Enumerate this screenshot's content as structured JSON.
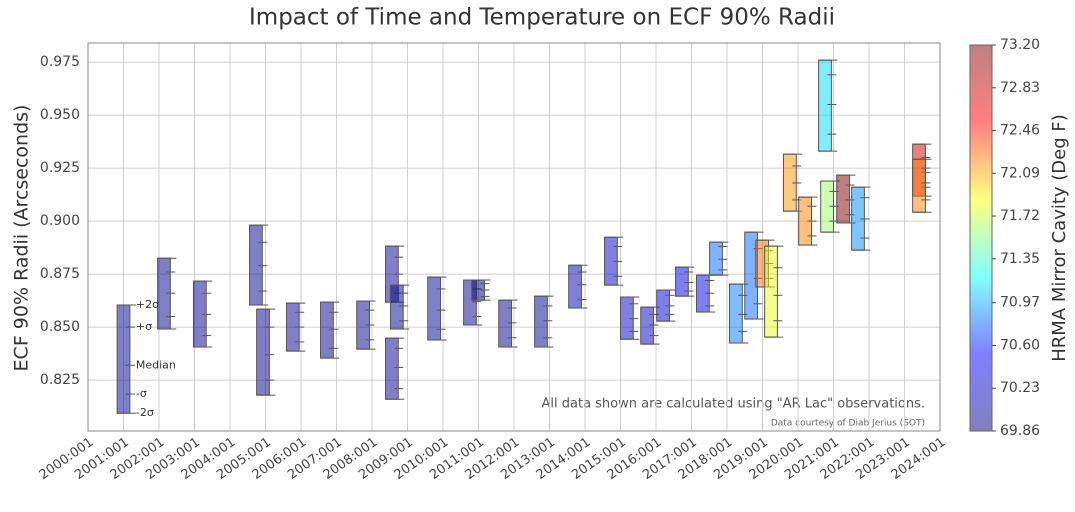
{
  "chart_data": {
    "type": "box",
    "title": "Impact of Time and Temperature on ECF 90% Radii",
    "y_label": "ECF 90% Radii (Arcseconds)",
    "colorbar_label": "HRMA Mirror Cavity (Deg F)",
    "annotations": [
      "All data shown are calculated using \"AR Lac\" observations.",
      "Data courtesy of Diab Jerius (SOT)"
    ],
    "sigma_labels": [
      "-2σ",
      "-σ",
      "Median",
      "+σ",
      "+2σ"
    ],
    "xlim": [
      2000,
      2024
    ],
    "xticks": [
      {
        "value": 2000,
        "label": "2000:001"
      },
      {
        "value": 2001,
        "label": "2001:001"
      },
      {
        "value": 2002,
        "label": "2002:001"
      },
      {
        "value": 2003,
        "label": "2003:001"
      },
      {
        "value": 2004,
        "label": "2004:001"
      },
      {
        "value": 2005,
        "label": "2005:001"
      },
      {
        "value": 2006,
        "label": "2006:001"
      },
      {
        "value": 2007,
        "label": "2007:001"
      },
      {
        "value": 2008,
        "label": "2008:001"
      },
      {
        "value": 2009,
        "label": "2009:001"
      },
      {
        "value": 2010,
        "label": "2010:001"
      },
      {
        "value": 2011,
        "label": "2011:001"
      },
      {
        "value": 2012,
        "label": "2012:001"
      },
      {
        "value": 2013,
        "label": "2013:001"
      },
      {
        "value": 2014,
        "label": "2014:001"
      },
      {
        "value": 2015,
        "label": "2015:001"
      },
      {
        "value": 2016,
        "label": "2016:001"
      },
      {
        "value": 2017,
        "label": "2017:001"
      },
      {
        "value": 2018,
        "label": "2018:001"
      },
      {
        "value": 2019,
        "label": "2019:001"
      },
      {
        "value": 2020,
        "label": "2020:001"
      },
      {
        "value": 2021,
        "label": "2021:001"
      },
      {
        "value": 2022,
        "label": "2022:001"
      },
      {
        "value": 2023,
        "label": "2023:001"
      },
      {
        "value": 2024,
        "label": "2024:001"
      }
    ],
    "ylim": [
      0.801,
      0.984
    ],
    "yticks": [
      0.825,
      {
        "value": 0.85,
        "label": "0.850"
      },
      0.875,
      {
        "value": 0.9,
        "label": "0.900"
      },
      0.925,
      {
        "value": 0.95,
        "label": "0.950"
      },
      0.975
    ],
    "grid": true,
    "clim": [
      69.86,
      73.2
    ],
    "cticks": [
      69.86,
      70.23,
      {
        "value": 70.6,
        "label": "70.60"
      },
      70.97,
      71.35,
      71.72,
      72.09,
      72.46,
      72.83,
      {
        "value": 73.2,
        "label": "73.20"
      }
    ],
    "colormap": [
      "#00007f",
      "#0000ff",
      "#00ffff",
      "#ffff00",
      "#ff0000",
      "#7f0000"
    ],
    "boxes": [
      {
        "x": 2001.0,
        "values": [
          0.8094,
          0.8184,
          0.832,
          0.85,
          0.8604
        ],
        "temp": 69.95
      },
      {
        "x": 2002.14,
        "values": [
          0.8491,
          0.855,
          0.866,
          0.876,
          0.8825
        ],
        "temp": 69.95
      },
      {
        "x": 2003.15,
        "values": [
          0.8406,
          0.846,
          0.856,
          0.866,
          0.8717
        ],
        "temp": 69.95
      },
      {
        "x": 2004.73,
        "values": [
          0.8604,
          0.867,
          0.879,
          0.89,
          0.8981
        ],
        "temp": 69.95
      },
      {
        "x": 2004.93,
        "values": [
          0.8179,
          0.825,
          0.837,
          0.85,
          0.8585
        ],
        "temp": 69.95
      },
      {
        "x": 2005.77,
        "values": [
          0.8387,
          0.843,
          0.85,
          0.857,
          0.8613
        ],
        "temp": 69.95
      },
      {
        "x": 2006.73,
        "values": [
          0.8354,
          0.84,
          0.849,
          0.857,
          0.8618
        ],
        "temp": 69.95
      },
      {
        "x": 2007.75,
        "values": [
          0.8396,
          0.844,
          0.851,
          0.858,
          0.8623
        ],
        "temp": 69.95
      },
      {
        "x": 2008.56,
        "values": [
          0.8618,
          0.866,
          0.875,
          0.883,
          0.8882
        ],
        "temp": 69.95
      },
      {
        "x": 2008.56,
        "values": [
          0.816,
          0.821,
          0.831,
          0.84,
          0.8448
        ],
        "temp": 69.95
      },
      {
        "x": 2008.7,
        "values": [
          0.8491,
          0.853,
          0.86,
          0.866,
          0.8698
        ],
        "temp": 69.95
      },
      {
        "x": 2009.75,
        "values": [
          0.8439,
          0.849,
          0.858,
          0.868,
          0.8736
        ],
        "temp": 69.95
      },
      {
        "x": 2010.76,
        "values": [
          0.851,
          0.855,
          0.862,
          0.868,
          0.8722
        ],
        "temp": 69.95
      },
      {
        "x": 2010.99,
        "values": [
          0.8627,
          0.8645,
          0.8675,
          0.8705,
          0.8722
        ],
        "temp": 69.86
      },
      {
        "x": 2011.75,
        "values": [
          0.8406,
          0.845,
          0.852,
          0.859,
          0.8627
        ],
        "temp": 69.95
      },
      {
        "x": 2012.76,
        "values": [
          0.8406,
          0.845,
          0.853,
          0.86,
          0.8646
        ],
        "temp": 69.95
      },
      {
        "x": 2013.72,
        "values": [
          0.859,
          0.863,
          0.87,
          0.876,
          0.8792
        ],
        "temp": 70.15
      },
      {
        "x": 2014.73,
        "values": [
          0.8698,
          0.874,
          0.881,
          0.888,
          0.8924
        ],
        "temp": 70.25
      },
      {
        "x": 2015.18,
        "values": [
          0.8443,
          0.848,
          0.854,
          0.861,
          0.8642
        ],
        "temp": 70.28
      },
      {
        "x": 2015.75,
        "values": [
          0.842,
          0.846,
          0.851,
          0.856,
          0.8594
        ],
        "temp": 70.2
      },
      {
        "x": 2016.2,
        "values": [
          0.8528,
          0.856,
          0.86,
          0.865,
          0.8675
        ],
        "temp": 70.32
      },
      {
        "x": 2016.73,
        "values": [
          0.8646,
          0.867,
          0.871,
          0.876,
          0.8783
        ],
        "temp": 70.4
      },
      {
        "x": 2017.32,
        "values": [
          0.8571,
          0.86,
          0.866,
          0.872,
          0.8745
        ],
        "temp": 70.45
      },
      {
        "x": 2017.69,
        "values": [
          0.8745,
          0.877,
          0.882,
          0.888,
          0.8901
        ],
        "temp": 70.8
      },
      {
        "x": 2018.25,
        "values": [
          0.8425,
          0.848,
          0.856,
          0.865,
          0.8703
        ],
        "temp": 70.85
      },
      {
        "x": 2018.68,
        "values": [
          0.8538,
          0.861,
          0.873,
          0.887,
          0.8948
        ],
        "temp": 70.8
      },
      {
        "x": 2018.99,
        "values": [
          0.8689,
          0.873,
          0.88,
          0.886,
          0.891
        ],
        "temp": 72.25
      },
      {
        "x": 2019.24,
        "values": [
          0.8453,
          0.853,
          0.865,
          0.878,
          0.8882
        ],
        "temp": 71.8
      },
      {
        "x": 2019.77,
        "values": [
          0.9047,
          0.91,
          0.918,
          0.926,
          0.9316
        ],
        "temp": 72.15
      },
      {
        "x": 2020.2,
        "values": [
          0.8887,
          0.893,
          0.9,
          0.907,
          0.9113
        ],
        "temp": 72.2
      },
      {
        "x": 2020.76,
        "values": [
          0.933,
          0.941,
          0.955,
          0.969,
          0.9759
        ],
        "temp": 71.1
      },
      {
        "x": 2020.82,
        "values": [
          0.8948,
          0.9,
          0.907,
          0.914,
          0.9189
        ],
        "temp": 71.6
      },
      {
        "x": 2021.27,
        "values": [
          0.8991,
          0.903,
          0.91,
          0.917,
          0.9217
        ],
        "temp": 73.2
      },
      {
        "x": 2021.69,
        "values": [
          0.8863,
          0.892,
          0.901,
          0.911,
          0.916
        ],
        "temp": 70.9
      },
      {
        "x": 2023.41,
        "values": [
          0.9118,
          0.916,
          0.923,
          0.93,
          0.9363
        ],
        "temp": 72.75
      },
      {
        "x": 2023.41,
        "values": [
          0.9042,
          0.91,
          0.918,
          0.925,
          0.9292
        ],
        "temp": 72.2
      }
    ]
  }
}
